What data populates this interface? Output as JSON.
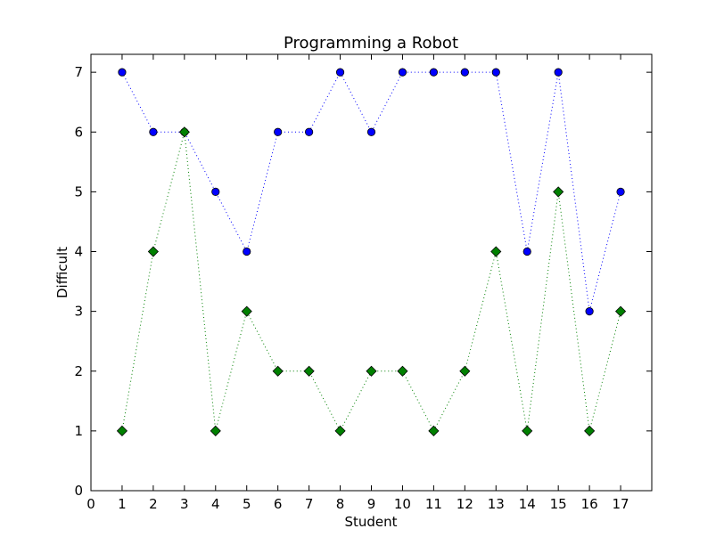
{
  "chart_data": {
    "type": "line",
    "title": "Programming a Robot",
    "xlabel": "Student",
    "ylabel": "Difficult",
    "xlim": [
      0,
      18
    ],
    "ylim": [
      0,
      7.3
    ],
    "xticks": [
      0,
      1,
      2,
      3,
      4,
      5,
      6,
      7,
      8,
      9,
      10,
      11,
      12,
      13,
      14,
      15,
      16,
      17
    ],
    "yticks": [
      0,
      1,
      2,
      3,
      4,
      5,
      6,
      7
    ],
    "grid": false,
    "x": [
      1,
      2,
      3,
      4,
      5,
      6,
      7,
      8,
      9,
      10,
      11,
      12,
      13,
      14,
      15,
      16,
      17
    ],
    "series": [
      {
        "values": [
          7,
          6,
          6,
          5,
          4,
          6,
          6,
          7,
          6,
          7,
          7,
          7,
          7,
          4,
          7,
          3,
          5
        ],
        "color": "#0000ff",
        "marker": "circle",
        "linestyle": "dotted"
      },
      {
        "values": [
          1,
          4,
          6,
          1,
          3,
          2,
          2,
          1,
          2,
          2,
          1,
          2,
          4,
          1,
          5,
          1,
          3
        ],
        "color": "#008000",
        "marker": "diamond",
        "linestyle": "dotted"
      }
    ]
  }
}
